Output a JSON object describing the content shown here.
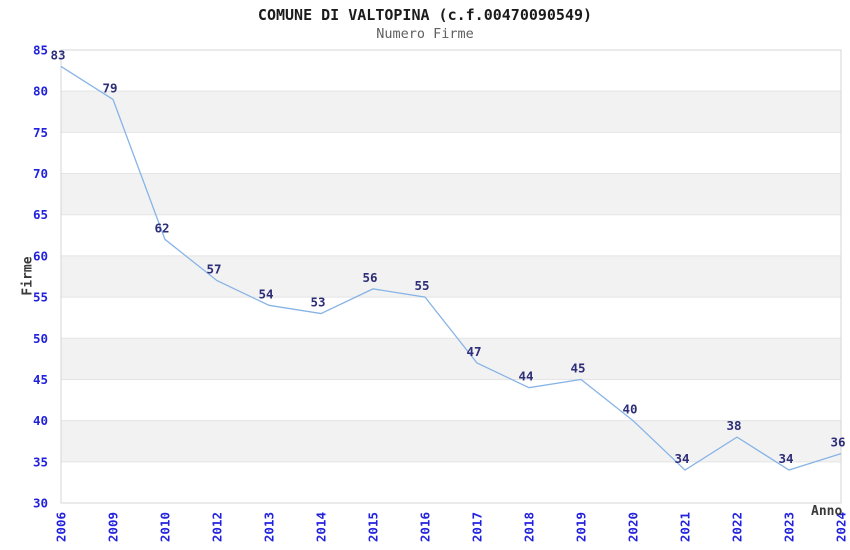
{
  "header": {
    "title": "COMUNE DI VALTOPINA (c.f.00470090549)",
    "subtitle": "Numero Firme"
  },
  "chart_data": {
    "type": "line",
    "title": "COMUNE DI VALTOPINA (c.f.00470090549)",
    "subtitle": "Numero Firme",
    "xlabel": "Anno",
    "ylabel": "Firme",
    "categories": [
      "2006",
      "2009",
      "2010",
      "2012",
      "2013",
      "2014",
      "2015",
      "2016",
      "2017",
      "2018",
      "2019",
      "2020",
      "2021",
      "2022",
      "2023",
      "2024"
    ],
    "values": [
      83,
      79,
      62,
      57,
      54,
      53,
      56,
      55,
      47,
      44,
      45,
      40,
      34,
      38,
      34,
      36
    ],
    "ylim": [
      30,
      85
    ],
    "ytick_step": 5,
    "yticks": [
      30,
      35,
      40,
      45,
      50,
      55,
      60,
      65,
      70,
      75,
      80,
      85
    ],
    "grid": "horizontal, alternating shaded bands",
    "legend_position": "none",
    "data_labels": true,
    "xtick_rotation_degrees": 90,
    "colors": {
      "line": "#87b4e6",
      "tick_label": "#2222dd",
      "value_label": "#2e2e78",
      "band": "#f2f2f2",
      "gridline": "#e4e4e4",
      "border": "#d5d5d5",
      "title": "#1b1b1b",
      "subtitle": "#606060",
      "axis_title": "#3a3a3a"
    }
  }
}
